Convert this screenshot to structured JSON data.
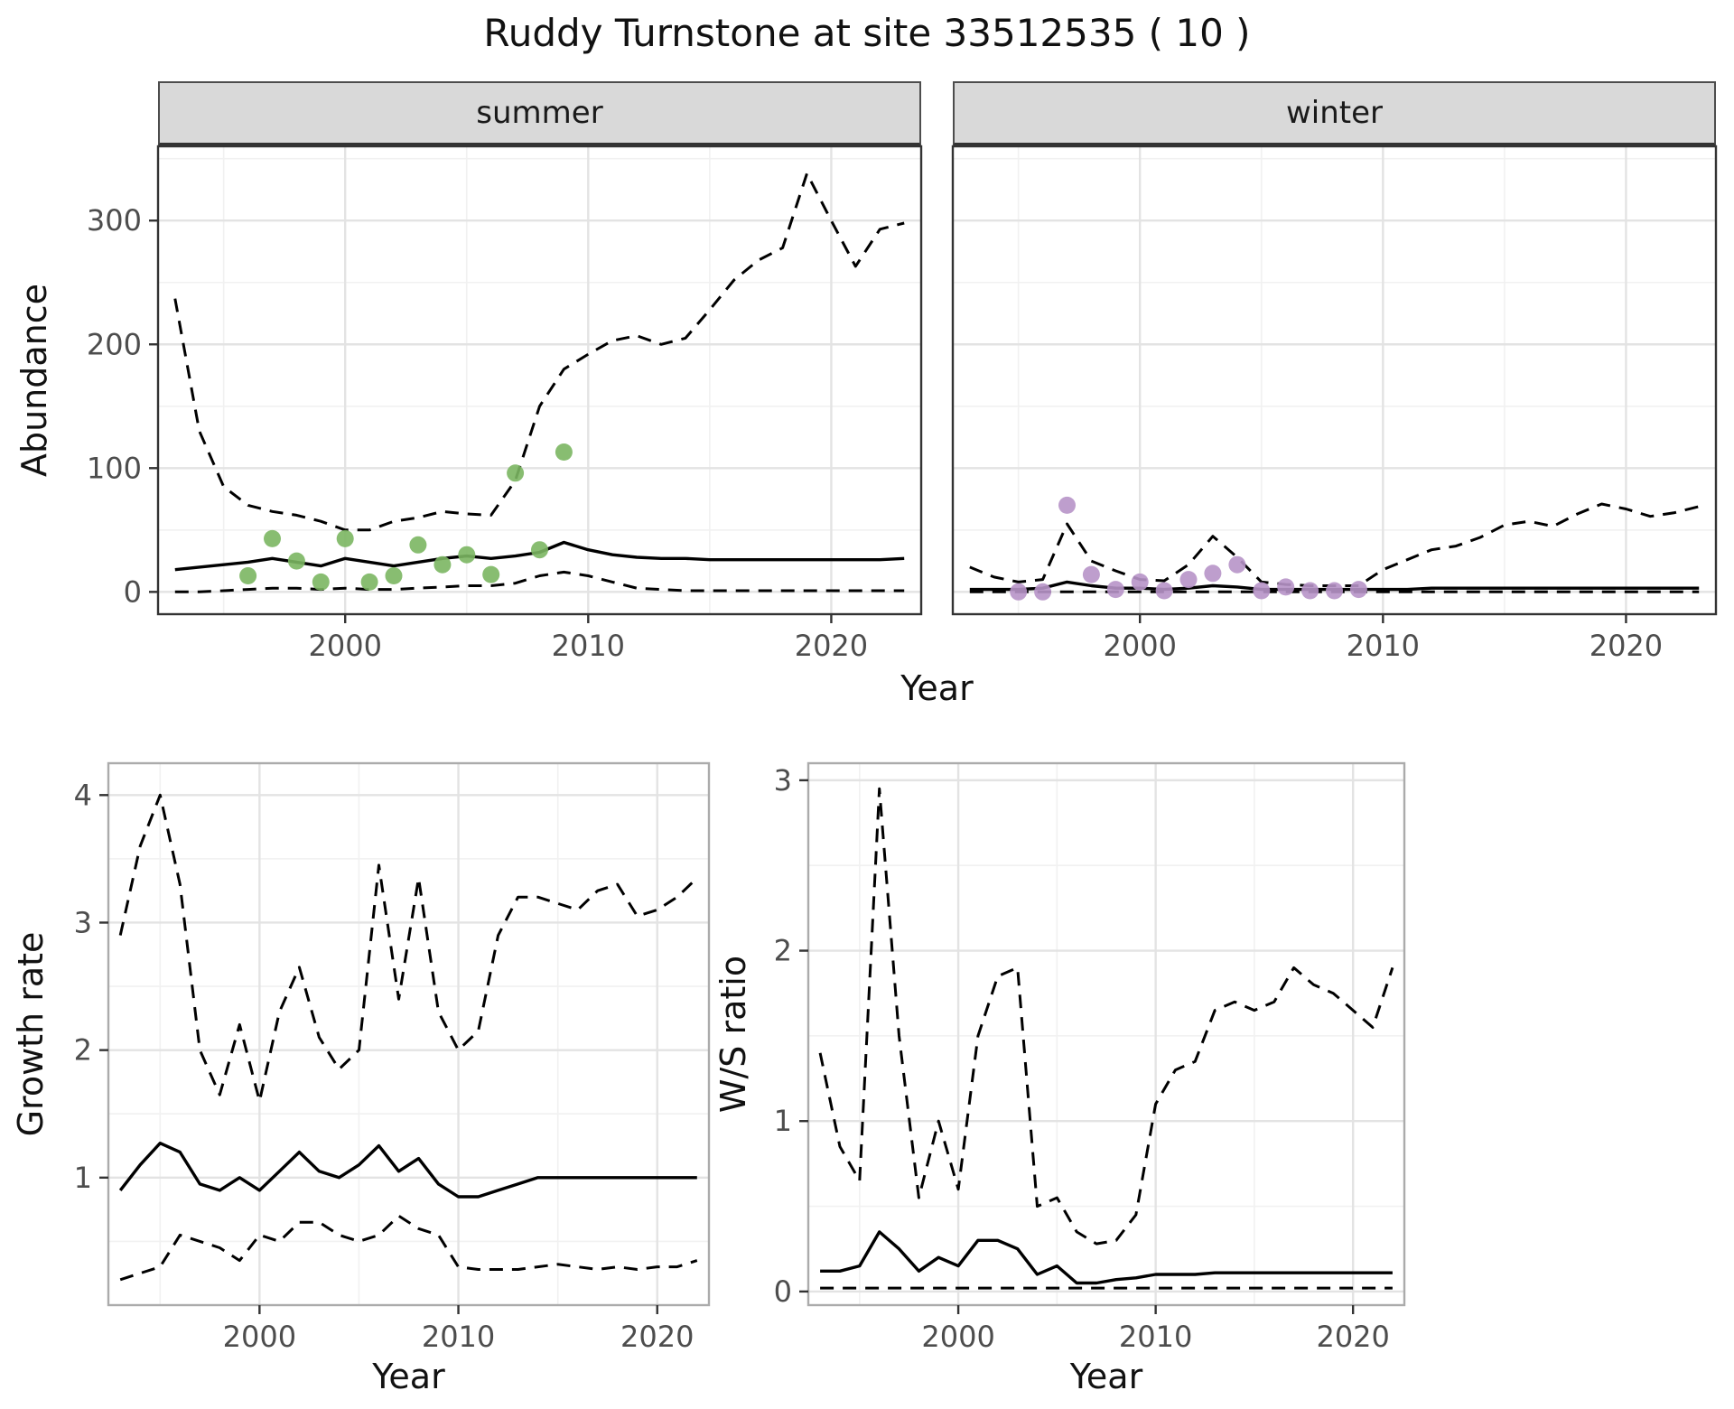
{
  "title": "Ruddy Turnstone at site 33512535 ( 10 )",
  "facets": [
    {
      "label": "summer"
    },
    {
      "label": "winter"
    }
  ],
  "axes": {
    "abundance": {
      "x": "Year",
      "y": "Abundance"
    },
    "growth": {
      "x": "Year",
      "y": "Growth rate"
    },
    "ws": {
      "x": "Year",
      "y": "W/S ratio"
    }
  },
  "style": {
    "line_color": "#000000",
    "summer_point_color": "#7bb662",
    "winter_point_color": "#b793c8",
    "strip_background": "#d9d9d9",
    "grid_major": "#e3e3e3",
    "grid_minor": "#f1f1f1",
    "tick_color": "#333333"
  },
  "chart_data": [
    {
      "id": "abundance-summer",
      "type": "line",
      "title": "summer",
      "xlabel": "Year",
      "ylabel": "Abundance",
      "xlim": [
        1992.3,
        2023.7
      ],
      "ylim": [
        -18,
        360
      ],
      "xticks": [
        2000,
        2010,
        2020
      ],
      "yticks": [
        0,
        100,
        200,
        300
      ],
      "xticks_minor": [
        1995,
        2005,
        2015
      ],
      "yticks_minor": [
        50,
        150,
        250,
        350
      ],
      "x": [
        1993,
        1994,
        1995,
        1996,
        1997,
        1998,
        1999,
        2000,
        2001,
        2002,
        2003,
        2004,
        2005,
        2006,
        2007,
        2008,
        2009,
        2010,
        2011,
        2012,
        2013,
        2014,
        2015,
        2016,
        2017,
        2018,
        2019,
        2020,
        2021,
        2022,
        2023
      ],
      "series": [
        {
          "name": "upper_ci",
          "style": "dashed",
          "values": [
            237,
            130,
            85,
            70,
            65,
            62,
            57,
            50,
            50,
            57,
            60,
            65,
            63,
            62,
            90,
            150,
            180,
            192,
            203,
            207,
            200,
            205,
            228,
            252,
            268,
            278,
            338,
            300,
            263,
            293,
            298
          ]
        },
        {
          "name": "median",
          "style": "solid",
          "values": [
            18,
            20,
            22,
            24,
            27,
            24,
            21,
            27,
            24,
            21,
            24,
            27,
            29,
            27,
            29,
            32,
            40,
            34,
            30,
            28,
            27,
            27,
            26,
            26,
            26,
            26,
            26,
            26,
            26,
            26,
            27
          ]
        },
        {
          "name": "lower_ci",
          "style": "dashed",
          "values": [
            0,
            0,
            1,
            2,
            3,
            3,
            2,
            3,
            2,
            2,
            3,
            4,
            5,
            5,
            7,
            13,
            16,
            13,
            8,
            3,
            2,
            1,
            1,
            1,
            1,
            1,
            1,
            1,
            1,
            1,
            1
          ]
        }
      ],
      "points": {
        "name": "observed_counts",
        "color": "#7bb662",
        "x": [
          1996,
          1997,
          1998,
          1999,
          2000,
          2001,
          2002,
          2003,
          2004,
          2005,
          2006,
          2007,
          2008,
          2009
        ],
        "y": [
          13,
          43,
          25,
          8,
          43,
          8,
          13,
          38,
          22,
          30,
          14,
          96,
          34,
          113
        ]
      }
    },
    {
      "id": "abundance-winter",
      "type": "line",
      "title": "winter",
      "xlabel": "Year",
      "ylabel": "Abundance",
      "xlim": [
        1992.3,
        2023.7
      ],
      "ylim": [
        -18,
        360
      ],
      "xticks": [
        2000,
        2010,
        2020
      ],
      "yticks": [
        0,
        100,
        200,
        300
      ],
      "xticks_minor": [
        1995,
        2005,
        2015
      ],
      "yticks_minor": [
        50,
        150,
        250,
        350
      ],
      "x": [
        1993,
        1994,
        1995,
        1996,
        1997,
        1998,
        1999,
        2000,
        2001,
        2002,
        2003,
        2004,
        2005,
        2006,
        2007,
        2008,
        2009,
        2010,
        2011,
        2012,
        2013,
        2014,
        2015,
        2016,
        2017,
        2018,
        2019,
        2020,
        2021,
        2022,
        2023
      ],
      "series": [
        {
          "name": "upper_ci",
          "style": "dashed",
          "values": [
            20,
            12,
            8,
            10,
            55,
            25,
            17,
            10,
            9,
            22,
            45,
            28,
            8,
            6,
            5,
            5,
            5,
            18,
            26,
            34,
            37,
            44,
            54,
            57,
            53,
            63,
            71,
            67,
            61,
            64,
            69
          ]
        },
        {
          "name": "median",
          "style": "solid",
          "values": [
            2,
            2,
            2,
            3,
            8,
            5,
            3,
            3,
            2,
            3,
            5,
            4,
            2,
            2,
            2,
            2,
            2,
            2,
            2,
            3,
            3,
            3,
            3,
            3,
            3,
            3,
            3,
            3,
            3,
            3,
            3
          ]
        },
        {
          "name": "lower_ci",
          "style": "dashed",
          "values": [
            0,
            0,
            0,
            0,
            0,
            0,
            0,
            0,
            0,
            0,
            0,
            0,
            0,
            0,
            0,
            0,
            0,
            0,
            0,
            0,
            0,
            0,
            0,
            0,
            0,
            0,
            0,
            0,
            0,
            0,
            0
          ]
        }
      ],
      "points": {
        "name": "observed_counts",
        "color": "#b793c8",
        "x": [
          1995,
          1996,
          1997,
          1998,
          1999,
          2000,
          2001,
          2002,
          2003,
          2004,
          2005,
          2006,
          2007,
          2008,
          2009
        ],
        "y": [
          0,
          0,
          70,
          14,
          2,
          8,
          1,
          10,
          15,
          22,
          1,
          4,
          1,
          1,
          2
        ]
      }
    },
    {
      "id": "growth-rate",
      "type": "line",
      "title": "",
      "xlabel": "Year",
      "ylabel": "Growth rate",
      "xlim": [
        1992.4,
        2022.6
      ],
      "ylim": [
        0,
        4.25
      ],
      "xticks": [
        2000,
        2010,
        2020
      ],
      "yticks": [
        1,
        2,
        3,
        4
      ],
      "xticks_minor": [
        1995,
        2005,
        2015
      ],
      "yticks_minor": [
        0.5,
        1.5,
        2.5,
        3.5
      ],
      "x": [
        1993,
        1994,
        1995,
        1996,
        1997,
        1998,
        1999,
        2000,
        2001,
        2002,
        2003,
        2004,
        2005,
        2006,
        2007,
        2008,
        2009,
        2010,
        2011,
        2012,
        2013,
        2014,
        2015,
        2016,
        2017,
        2018,
        2019,
        2020,
        2021,
        2022
      ],
      "series": [
        {
          "name": "upper_ci",
          "style": "dashed",
          "values": [
            2.9,
            3.6,
            4.0,
            3.3,
            2.0,
            1.65,
            2.2,
            1.6,
            2.3,
            2.65,
            2.1,
            1.85,
            2.0,
            3.45,
            2.4,
            3.35,
            2.3,
            2.0,
            2.15,
            2.9,
            3.2,
            3.2,
            3.15,
            3.1,
            3.25,
            3.3,
            3.05,
            3.1,
            3.2,
            3.35
          ]
        },
        {
          "name": "median",
          "style": "solid",
          "values": [
            0.9,
            1.1,
            1.27,
            1.2,
            0.95,
            0.9,
            1.0,
            0.9,
            1.05,
            1.2,
            1.05,
            1.0,
            1.1,
            1.25,
            1.05,
            1.15,
            0.95,
            0.85,
            0.85,
            0.9,
            0.95,
            1.0,
            1.0,
            1.0,
            1.0,
            1.0,
            1.0,
            1.0,
            1.0,
            1.0
          ]
        },
        {
          "name": "lower_ci",
          "style": "dashed",
          "values": [
            0.2,
            0.25,
            0.3,
            0.55,
            0.5,
            0.45,
            0.35,
            0.55,
            0.5,
            0.65,
            0.65,
            0.55,
            0.5,
            0.55,
            0.7,
            0.6,
            0.55,
            0.3,
            0.28,
            0.28,
            0.28,
            0.3,
            0.32,
            0.3,
            0.28,
            0.3,
            0.28,
            0.3,
            0.3,
            0.35
          ]
        }
      ]
    },
    {
      "id": "ws-ratio",
      "type": "line",
      "title": "",
      "xlabel": "Year",
      "ylabel": "W/S ratio",
      "xlim": [
        1992.4,
        2022.6
      ],
      "ylim": [
        -0.08,
        3.1
      ],
      "xticks": [
        2000,
        2010,
        2020
      ],
      "yticks": [
        0,
        1,
        2,
        3
      ],
      "xticks_minor": [
        1995,
        2005,
        2015
      ],
      "yticks_minor": [
        0.5,
        1.5,
        2.5
      ],
      "x": [
        1993,
        1994,
        1995,
        1996,
        1997,
        1998,
        1999,
        2000,
        2001,
        2002,
        2003,
        2004,
        2005,
        2006,
        2007,
        2008,
        2009,
        2010,
        2011,
        2012,
        2013,
        2014,
        2015,
        2016,
        2017,
        2018,
        2019,
        2020,
        2021,
        2022
      ],
      "series": [
        {
          "name": "upper_ci",
          "style": "dashed",
          "values": [
            1.4,
            0.85,
            0.65,
            2.95,
            1.5,
            0.55,
            1.0,
            0.6,
            1.5,
            1.85,
            1.9,
            0.5,
            0.55,
            0.35,
            0.28,
            0.3,
            0.45,
            1.1,
            1.3,
            1.35,
            1.65,
            1.7,
            1.65,
            1.7,
            1.9,
            1.8,
            1.75,
            1.65,
            1.55,
            1.9
          ]
        },
        {
          "name": "median",
          "style": "solid",
          "values": [
            0.12,
            0.12,
            0.15,
            0.35,
            0.25,
            0.12,
            0.2,
            0.15,
            0.3,
            0.3,
            0.25,
            0.1,
            0.15,
            0.05,
            0.05,
            0.07,
            0.08,
            0.1,
            0.1,
            0.1,
            0.11,
            0.11,
            0.11,
            0.11,
            0.11,
            0.11,
            0.11,
            0.11,
            0.11,
            0.11
          ]
        },
        {
          "name": "lower_ci",
          "style": "dashed",
          "values": [
            0.02,
            0.02,
            0.02,
            0.02,
            0.02,
            0.02,
            0.02,
            0.02,
            0.02,
            0.02,
            0.02,
            0.02,
            0.02,
            0.02,
            0.02,
            0.02,
            0.02,
            0.02,
            0.02,
            0.02,
            0.02,
            0.02,
            0.02,
            0.02,
            0.02,
            0.02,
            0.02,
            0.02,
            0.02,
            0.02
          ]
        }
      ]
    }
  ]
}
